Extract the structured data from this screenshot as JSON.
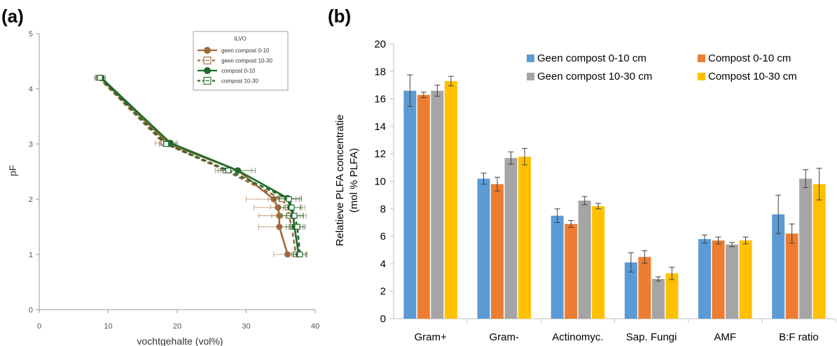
{
  "panels": {
    "a_label": "(a)",
    "b_label": "(b)"
  },
  "chart_data": [
    {
      "type": "line",
      "xlabel": "vochtgehalte (vol%)",
      "ylabel": "pF",
      "xlim": [
        0,
        40
      ],
      "ylim": [
        0,
        5
      ],
      "x_ticks": [
        "0",
        "10",
        "20",
        "30",
        "40"
      ],
      "y_ticks": [
        "0",
        "1",
        "2",
        "3",
        "4",
        "5"
      ],
      "legend_title": "ILVO",
      "legend_position": "top-right",
      "series": [
        {
          "name": "geen compost 0-10",
          "color": "#a0693a",
          "dash": "solid",
          "marker": "circle",
          "points": [
            {
              "x": 8.8,
              "y": 4.2,
              "xerr": 0.6
            },
            {
              "x": 18.8,
              "y": 3.0,
              "xerr": 1.0
            },
            {
              "x": 28.8,
              "y": 2.52,
              "xerr": 2.0
            },
            {
              "x": 34.0,
              "y": 2.0,
              "xerr": 4.0
            },
            {
              "x": 34.6,
              "y": 1.85,
              "xerr": 3.5
            },
            {
              "x": 34.8,
              "y": 1.7,
              "xerr": 3.0
            },
            {
              "x": 34.8,
              "y": 1.5,
              "xerr": 3.0
            },
            {
              "x": 36.0,
              "y": 1.0,
              "xerr": 2.0
            }
          ]
        },
        {
          "name": "geen compost 10-30",
          "color": "#a0693a",
          "dash": "dashed",
          "marker": "square-open",
          "points": [
            {
              "x": 8.6,
              "y": 4.2,
              "xerr": 0.6
            },
            {
              "x": 18.0,
              "y": 3.02,
              "xerr": 1.2
            },
            {
              "x": 27.0,
              "y": 2.52,
              "xerr": 1.5
            },
            {
              "x": 35.2,
              "y": 2.0,
              "xerr": 2.0
            },
            {
              "x": 36.0,
              "y": 1.85,
              "xerr": 2.5
            },
            {
              "x": 36.2,
              "y": 1.7,
              "xerr": 2.5
            },
            {
              "x": 36.6,
              "y": 1.5,
              "xerr": 2.0
            },
            {
              "x": 37.2,
              "y": 1.0,
              "xerr": 1.5
            }
          ]
        },
        {
          "name": "compost 0-10",
          "color": "#1d6b2c",
          "dash": "solid",
          "marker": "circle",
          "points": [
            {
              "x": 9.0,
              "y": 4.2,
              "xerr": 0.6
            },
            {
              "x": 19.0,
              "y": 3.02,
              "xerr": 1.0
            },
            {
              "x": 28.8,
              "y": 2.52,
              "xerr": 2.5
            },
            {
              "x": 36.0,
              "y": 2.02,
              "xerr": 2.0
            },
            {
              "x": 36.4,
              "y": 1.85,
              "xerr": 1.5
            },
            {
              "x": 36.8,
              "y": 1.7,
              "xerr": 1.5
            },
            {
              "x": 37.0,
              "y": 1.5,
              "xerr": 1.2
            },
            {
              "x": 37.6,
              "y": 1.0,
              "xerr": 1.0
            }
          ]
        },
        {
          "name": "compost 10-30",
          "color": "#1d6b2c",
          "dash": "dashed",
          "marker": "square-open",
          "points": [
            {
              "x": 8.8,
              "y": 4.2,
              "xerr": 0.6
            },
            {
              "x": 18.4,
              "y": 3.0,
              "xerr": 1.0
            },
            {
              "x": 27.4,
              "y": 2.52,
              "xerr": 1.5
            },
            {
              "x": 36.2,
              "y": 2.0,
              "xerr": 1.5
            },
            {
              "x": 36.6,
              "y": 1.85,
              "xerr": 1.2
            },
            {
              "x": 37.0,
              "y": 1.7,
              "xerr": 1.2
            },
            {
              "x": 37.4,
              "y": 1.5,
              "xerr": 1.0
            },
            {
              "x": 37.8,
              "y": 1.0,
              "xerr": 1.0
            }
          ]
        }
      ]
    },
    {
      "type": "bar",
      "ylabel_line1": "Relatieve PLFA concentratie",
      "ylabel_line2": "(mol % PLFA)",
      "ylim": [
        0,
        20
      ],
      "y_ticks": [
        "0",
        "2",
        "4",
        "6",
        "8",
        "10",
        "12",
        "14",
        "16",
        "18",
        "20"
      ],
      "categories": [
        "Gram+",
        "Gram-",
        "Actinomyc.",
        "Sap. Fungi",
        "AMF",
        "B:F ratio"
      ],
      "legend_position": "top-right",
      "grid": false,
      "series": [
        {
          "name": "Geen compost 0-10 cm",
          "color": "#5b9bd5",
          "values": [
            16.6,
            10.2,
            7.5,
            4.1,
            5.8,
            7.6
          ],
          "errors": [
            1.15,
            0.4,
            0.5,
            0.7,
            0.3,
            1.4
          ]
        },
        {
          "name": "Compost 0-10 cm",
          "color": "#ed7d31",
          "values": [
            16.3,
            9.8,
            6.9,
            4.5,
            5.7,
            6.2
          ],
          "errors": [
            0.2,
            0.5,
            0.25,
            0.45,
            0.25,
            0.7
          ]
        },
        {
          "name": "Geen compost 10-30 cm",
          "color": "#a5a5a5",
          "values": [
            16.6,
            11.7,
            8.6,
            2.9,
            5.4,
            10.2
          ],
          "errors": [
            0.4,
            0.45,
            0.3,
            0.15,
            0.15,
            0.65
          ]
        },
        {
          "name": "Compost 10-30 cm",
          "color": "#ffc000",
          "values": [
            17.3,
            11.8,
            8.2,
            3.3,
            5.7,
            9.8
          ],
          "errors": [
            0.35,
            0.6,
            0.2,
            0.45,
            0.25,
            1.15
          ]
        }
      ]
    }
  ]
}
